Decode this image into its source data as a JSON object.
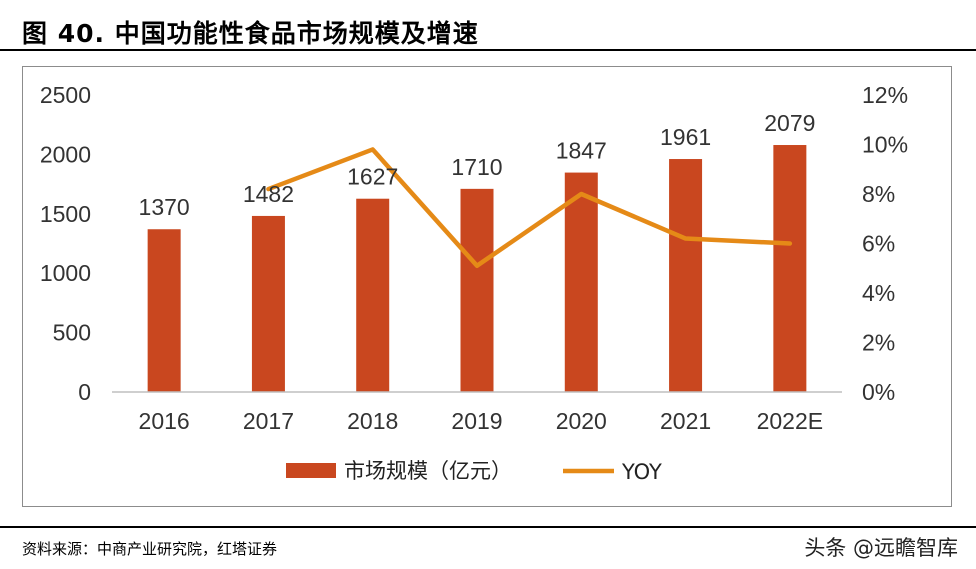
{
  "header": {
    "title": "图 40. 中国功能性食品市场规模及增速"
  },
  "footer": {
    "source": "资料来源：中商产业研究院，红塔证券",
    "watermark": "头条 @远瞻智库"
  },
  "colors": {
    "bar": "#c9471f",
    "line": "#e58a17",
    "axis": "#bfbfbf"
  },
  "chart_data": {
    "type": "bar",
    "categories": [
      "2016",
      "2017",
      "2018",
      "2019",
      "2020",
      "2021",
      "2022E"
    ],
    "series": [
      {
        "name": "市场规模（亿元）",
        "type": "bar",
        "axis": "left",
        "values": [
          1370,
          1482,
          1627,
          1710,
          1847,
          1961,
          2079
        ]
      },
      {
        "name": "YOY",
        "type": "line",
        "axis": "right",
        "values": [
          null,
          8.2,
          9.8,
          5.1,
          8.0,
          6.2,
          6.0
        ]
      }
    ],
    "ylim": [
      0,
      2500
    ],
    "yticks": [
      "0",
      "500",
      "1000",
      "1500",
      "2000",
      "2500"
    ],
    "y2lim": [
      0,
      12
    ],
    "y2ticks": [
      "0%",
      "2%",
      "4%",
      "6%",
      "8%",
      "10%",
      "12%"
    ],
    "data_labels": [
      "1370",
      "1482",
      "1627",
      "1710",
      "1847",
      "1961",
      "2079"
    ],
    "legend": "bottom",
    "grid": false
  }
}
